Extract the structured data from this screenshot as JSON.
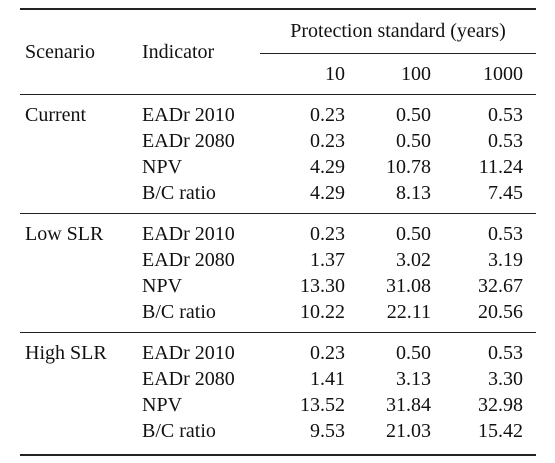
{
  "header": {
    "scenario": "Scenario",
    "indicator": "Indicator",
    "group_title": "Protection standard (years)",
    "years": [
      "10",
      "100",
      "1000"
    ]
  },
  "groups": [
    {
      "scenario": "Current",
      "rows": [
        {
          "indicator": "EADr 2010",
          "values": [
            "0.23",
            "0.50",
            "0.53"
          ]
        },
        {
          "indicator": "EADr 2080",
          "values": [
            "0.23",
            "0.50",
            "0.53"
          ]
        },
        {
          "indicator": "NPV",
          "values": [
            "4.29",
            "10.78",
            "11.24"
          ]
        },
        {
          "indicator": "B/C ratio",
          "values": [
            "4.29",
            "8.13",
            "7.45"
          ]
        }
      ]
    },
    {
      "scenario": "Low SLR",
      "rows": [
        {
          "indicator": "EADr 2010",
          "values": [
            "0.23",
            "0.50",
            "0.53"
          ]
        },
        {
          "indicator": "EADr 2080",
          "values": [
            "1.37",
            "3.02",
            "3.19"
          ]
        },
        {
          "indicator": "NPV",
          "values": [
            "13.30",
            "31.08",
            "32.67"
          ]
        },
        {
          "indicator": "B/C ratio",
          "values": [
            "10.22",
            "22.11",
            "20.56"
          ]
        }
      ]
    },
    {
      "scenario": "High SLR",
      "rows": [
        {
          "indicator": "EADr 2010",
          "values": [
            "0.23",
            "0.50",
            "0.53"
          ]
        },
        {
          "indicator": "EADr 2080",
          "values": [
            "1.41",
            "3.13",
            "3.30"
          ]
        },
        {
          "indicator": "NPV",
          "values": [
            "13.52",
            "31.84",
            "32.98"
          ]
        },
        {
          "indicator": "B/C ratio",
          "values": [
            "9.53",
            "21.03",
            "15.42"
          ]
        }
      ]
    }
  ]
}
